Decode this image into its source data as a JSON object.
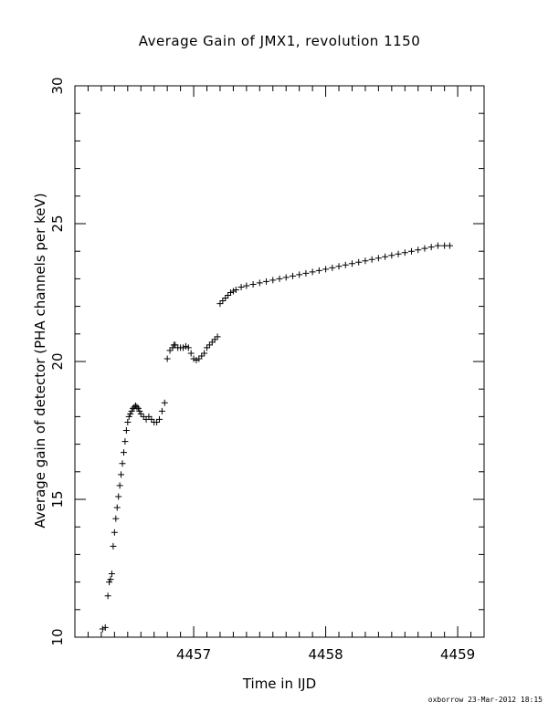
{
  "chart_data": {
    "type": "scatter",
    "title": "Average Gain of JMX1, revolution 1150",
    "xlabel": "Time in IJD",
    "ylabel": "Average gain of detector (PHA channels per keV)",
    "xlim": [
      4456.1,
      4459.2
    ],
    "ylim": [
      10,
      30
    ],
    "xticks": [
      4457,
      4458,
      4459
    ],
    "yticks": [
      10,
      15,
      20,
      25,
      30
    ],
    "xtick_labels": [
      "4457",
      "4458",
      "4459"
    ],
    "ytick_labels": [
      "10",
      "15",
      "20",
      "25",
      "30"
    ],
    "marker": "plus",
    "grid": false,
    "series": [
      {
        "color": "#000000",
        "x": [
          4456.31,
          4456.33,
          4456.35,
          4456.36,
          4456.37,
          4456.38,
          4456.39,
          4456.4,
          4456.41,
          4456.42,
          4456.43,
          4456.44,
          4456.45,
          4456.46,
          4456.47,
          4456.48,
          4456.49,
          4456.5,
          4456.51,
          4456.52,
          4456.53,
          4456.54,
          4456.55,
          4456.56,
          4456.57,
          4456.58,
          4456.59,
          4456.6,
          4456.62,
          4456.64,
          4456.66,
          4456.68,
          4456.7,
          4456.72,
          4456.74,
          4456.76,
          4456.78,
          4456.8,
          4456.82,
          4456.84,
          4456.85,
          4456.86,
          4456.88,
          4456.9,
          4456.92,
          4456.94,
          4456.96,
          4456.98,
          4457.0,
          4457.02,
          4457.04,
          4457.06,
          4457.08,
          4457.1,
          4457.12,
          4457.14,
          4457.16,
          4457.18,
          4457.2,
          4457.22,
          4457.24,
          4457.26,
          4457.28,
          4457.3,
          4457.32,
          4457.36,
          4457.4,
          4457.45,
          4457.5,
          4457.55,
          4457.6,
          4457.65,
          4457.7,
          4457.75,
          4457.8,
          4457.85,
          4457.9,
          4457.95,
          4458.0,
          4458.05,
          4458.1,
          4458.15,
          4458.2,
          4458.25,
          4458.3,
          4458.35,
          4458.4,
          4458.45,
          4458.5,
          4458.55,
          4458.6,
          4458.65,
          4458.7,
          4458.75,
          4458.8,
          4458.85,
          4458.9,
          4458.94
        ],
        "y": [
          10.3,
          10.35,
          11.5,
          12.0,
          12.1,
          12.3,
          13.3,
          13.8,
          14.3,
          14.7,
          15.1,
          15.5,
          15.9,
          16.3,
          16.7,
          17.1,
          17.5,
          17.8,
          18.0,
          18.1,
          18.2,
          18.3,
          18.35,
          18.4,
          18.35,
          18.3,
          18.2,
          18.1,
          18.0,
          17.9,
          18.0,
          17.9,
          17.8,
          17.8,
          17.9,
          18.2,
          18.5,
          20.1,
          20.4,
          20.5,
          20.6,
          20.6,
          20.5,
          20.5,
          20.5,
          20.55,
          20.5,
          20.3,
          20.1,
          20.05,
          20.1,
          20.2,
          20.3,
          20.5,
          20.6,
          20.7,
          20.8,
          20.9,
          22.1,
          22.2,
          22.3,
          22.4,
          22.5,
          22.55,
          22.6,
          22.7,
          22.75,
          22.8,
          22.85,
          22.9,
          22.95,
          23.0,
          23.05,
          23.1,
          23.15,
          23.2,
          23.25,
          23.3,
          23.35,
          23.4,
          23.45,
          23.5,
          23.55,
          23.6,
          23.65,
          23.7,
          23.75,
          23.8,
          23.85,
          23.9,
          23.95,
          24.0,
          24.05,
          24.1,
          24.15,
          24.2,
          24.2,
          24.2
        ]
      }
    ]
  },
  "footer": {
    "credit": "oxborrow 23-Mar-2012 18:15"
  }
}
